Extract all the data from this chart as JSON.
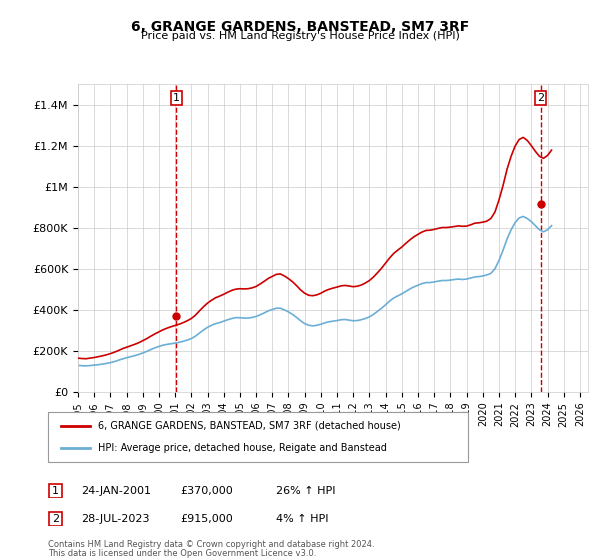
{
  "title": "6, GRANGE GARDENS, BANSTEAD, SM7 3RF",
  "subtitle": "Price paid vs. HM Land Registry's House Price Index (HPI)",
  "ylabel": "",
  "xlim_start": 1995.0,
  "xlim_end": 2026.5,
  "ylim_min": 0,
  "ylim_max": 1500000,
  "yticks": [
    0,
    200000,
    400000,
    600000,
    800000,
    1000000,
    1200000,
    1400000
  ],
  "ytick_labels": [
    "£0",
    "£200K",
    "£400K",
    "£600K",
    "£800K",
    "£1M",
    "£1.2M",
    "£1.4M"
  ],
  "xtick_years": [
    1995,
    1996,
    1997,
    1998,
    1999,
    2000,
    2001,
    2002,
    2003,
    2004,
    2005,
    2006,
    2007,
    2008,
    2009,
    2010,
    2011,
    2012,
    2013,
    2014,
    2015,
    2016,
    2017,
    2018,
    2019,
    2020,
    2021,
    2022,
    2023,
    2024,
    2025,
    2026
  ],
  "hpi_color": "#6baed6",
  "price_color": "#cc0000",
  "vline_color": "#cc0000",
  "annotation_box_color": "#cc0000",
  "background_color": "#ffffff",
  "grid_color": "#cccccc",
  "transaction1": {
    "label": "1",
    "date": "24-JAN-2001",
    "price": 370000,
    "hpi_pct": "26%",
    "x": 2001.07
  },
  "transaction2": {
    "label": "2",
    "date": "28-JUL-2023",
    "price": 915000,
    "hpi_pct": "4%",
    "x": 2023.57
  },
  "legend_line1": "6, GRANGE GARDENS, BANSTEAD, SM7 3RF (detached house)",
  "legend_line2": "HPI: Average price, detached house, Reigate and Banstead",
  "footer1": "Contains HM Land Registry data © Crown copyright and database right 2024.",
  "footer2": "This data is licensed under the Open Government Licence v3.0.",
  "hpi_data_x": [
    1995.0,
    1995.25,
    1995.5,
    1995.75,
    1996.0,
    1996.25,
    1996.5,
    1996.75,
    1997.0,
    1997.25,
    1997.5,
    1997.75,
    1998.0,
    1998.25,
    1998.5,
    1998.75,
    1999.0,
    1999.25,
    1999.5,
    1999.75,
    2000.0,
    2000.25,
    2000.5,
    2000.75,
    2001.0,
    2001.25,
    2001.5,
    2001.75,
    2002.0,
    2002.25,
    2002.5,
    2002.75,
    2003.0,
    2003.25,
    2003.5,
    2003.75,
    2004.0,
    2004.25,
    2004.5,
    2004.75,
    2005.0,
    2005.25,
    2005.5,
    2005.75,
    2006.0,
    2006.25,
    2006.5,
    2006.75,
    2007.0,
    2007.25,
    2007.5,
    2007.75,
    2008.0,
    2008.25,
    2008.5,
    2008.75,
    2009.0,
    2009.25,
    2009.5,
    2009.75,
    2010.0,
    2010.25,
    2010.5,
    2010.75,
    2011.0,
    2011.25,
    2011.5,
    2011.75,
    2012.0,
    2012.25,
    2012.5,
    2012.75,
    2013.0,
    2013.25,
    2013.5,
    2013.75,
    2014.0,
    2014.25,
    2014.5,
    2014.75,
    2015.0,
    2015.25,
    2015.5,
    2015.75,
    2016.0,
    2016.25,
    2016.5,
    2016.75,
    2017.0,
    2017.25,
    2017.5,
    2017.75,
    2018.0,
    2018.25,
    2018.5,
    2018.75,
    2019.0,
    2019.25,
    2019.5,
    2019.75,
    2020.0,
    2020.25,
    2020.5,
    2020.75,
    2021.0,
    2021.25,
    2021.5,
    2021.75,
    2022.0,
    2022.25,
    2022.5,
    2022.75,
    2023.0,
    2023.25,
    2023.5,
    2023.75,
    2024.0,
    2024.25
  ],
  "hpi_data_y": [
    130000,
    128000,
    127000,
    129000,
    131000,
    133000,
    136000,
    139000,
    143000,
    148000,
    155000,
    161000,
    167000,
    172000,
    177000,
    183000,
    190000,
    198000,
    207000,
    215000,
    222000,
    228000,
    232000,
    235000,
    238000,
    242000,
    247000,
    253000,
    260000,
    272000,
    287000,
    302000,
    315000,
    325000,
    333000,
    338000,
    345000,
    352000,
    358000,
    362000,
    362000,
    360000,
    360000,
    363000,
    368000,
    376000,
    385000,
    395000,
    402000,
    408000,
    408000,
    400000,
    390000,
    378000,
    363000,
    347000,
    333000,
    325000,
    322000,
    325000,
    330000,
    337000,
    342000,
    345000,
    348000,
    352000,
    353000,
    350000,
    347000,
    348000,
    352000,
    358000,
    366000,
    378000,
    393000,
    408000,
    425000,
    443000,
    458000,
    468000,
    478000,
    490000,
    502000,
    512000,
    520000,
    528000,
    533000,
    533000,
    536000,
    540000,
    543000,
    543000,
    545000,
    548000,
    550000,
    548000,
    550000,
    555000,
    560000,
    562000,
    565000,
    570000,
    578000,
    600000,
    640000,
    690000,
    745000,
    790000,
    825000,
    848000,
    855000,
    845000,
    830000,
    810000,
    790000,
    780000,
    790000,
    810000
  ],
  "price_data_x": [
    1995.0,
    1995.25,
    1995.5,
    1995.75,
    1996.0,
    1996.25,
    1996.5,
    1996.75,
    1997.0,
    1997.25,
    1997.5,
    1997.75,
    1998.0,
    1998.25,
    1998.5,
    1998.75,
    1999.0,
    1999.25,
    1999.5,
    1999.75,
    2000.0,
    2000.25,
    2000.5,
    2000.75,
    2001.0,
    2001.25,
    2001.5,
    2001.75,
    2002.0,
    2002.25,
    2002.5,
    2002.75,
    2003.0,
    2003.25,
    2003.5,
    2003.75,
    2004.0,
    2004.25,
    2004.5,
    2004.75,
    2005.0,
    2005.25,
    2005.5,
    2005.75,
    2006.0,
    2006.25,
    2006.5,
    2006.75,
    2007.0,
    2007.25,
    2007.5,
    2007.75,
    2008.0,
    2008.25,
    2008.5,
    2008.75,
    2009.0,
    2009.25,
    2009.5,
    2009.75,
    2010.0,
    2010.25,
    2010.5,
    2010.75,
    2011.0,
    2011.25,
    2011.5,
    2011.75,
    2012.0,
    2012.25,
    2012.5,
    2012.75,
    2013.0,
    2013.25,
    2013.5,
    2013.75,
    2014.0,
    2014.25,
    2014.5,
    2014.75,
    2015.0,
    2015.25,
    2015.5,
    2015.75,
    2016.0,
    2016.25,
    2016.5,
    2016.75,
    2017.0,
    2017.25,
    2017.5,
    2017.75,
    2018.0,
    2018.25,
    2018.5,
    2018.75,
    2019.0,
    2019.25,
    2019.5,
    2019.75,
    2020.0,
    2020.25,
    2020.5,
    2020.75,
    2021.0,
    2021.25,
    2021.5,
    2021.75,
    2022.0,
    2022.25,
    2022.5,
    2022.75,
    2023.0,
    2023.25,
    2023.5,
    2023.75,
    2024.0,
    2024.25
  ],
  "price_data_y": [
    165000,
    163000,
    162000,
    165000,
    168000,
    172000,
    176000,
    181000,
    187000,
    194000,
    202000,
    211000,
    218000,
    225000,
    232000,
    240000,
    250000,
    260000,
    272000,
    283000,
    293000,
    303000,
    311000,
    318000,
    324000,
    330000,
    338000,
    347000,
    358000,
    374000,
    395000,
    415000,
    433000,
    447000,
    459000,
    467000,
    476000,
    486000,
    495000,
    501000,
    503000,
    502000,
    503000,
    507000,
    514000,
    526000,
    539000,
    553000,
    563000,
    573000,
    575000,
    565000,
    552000,
    537000,
    518000,
    497000,
    481000,
    471000,
    469000,
    473000,
    481000,
    492000,
    500000,
    506000,
    511000,
    517000,
    519000,
    516000,
    513000,
    515000,
    521000,
    531000,
    543000,
    560000,
    581000,
    603000,
    628000,
    653000,
    675000,
    691000,
    706000,
    724000,
    741000,
    756000,
    768000,
    779000,
    787000,
    788000,
    792000,
    797000,
    801000,
    801000,
    803000,
    806000,
    809000,
    807000,
    808000,
    814000,
    822000,
    824000,
    827000,
    832000,
    845000,
    876000,
    935000,
    1005000,
    1085000,
    1148000,
    1198000,
    1230000,
    1240000,
    1225000,
    1200000,
    1172000,
    1148000,
    1138000,
    1152000,
    1178000
  ]
}
